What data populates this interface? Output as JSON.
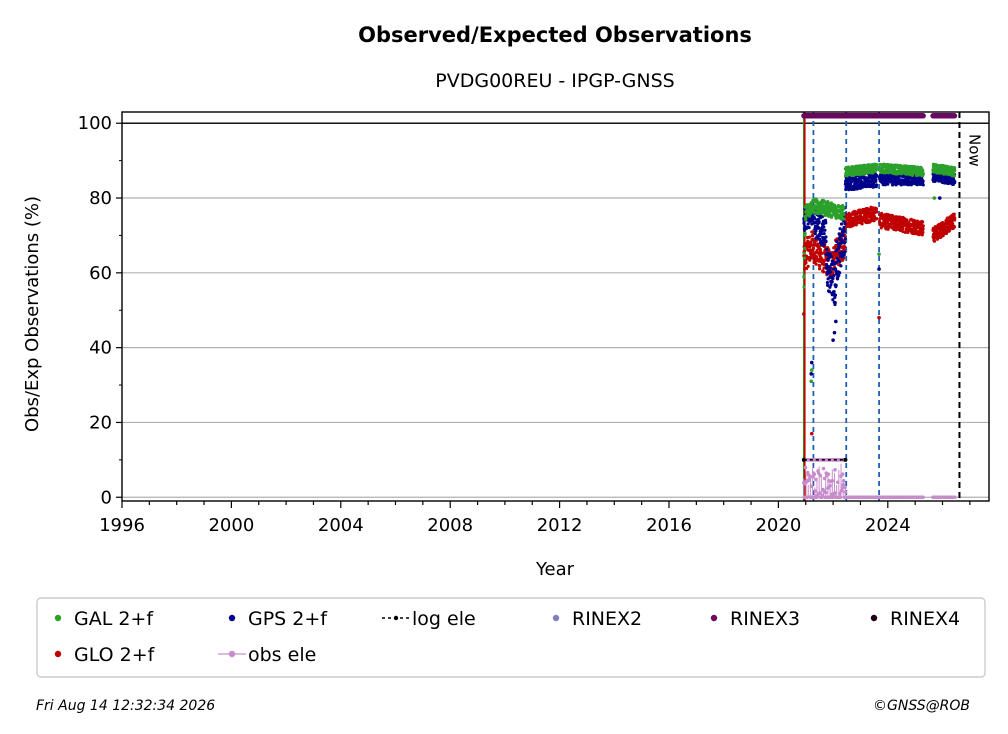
{
  "chart_data": {
    "type": "scatter",
    "title": "Observed/Expected Observations",
    "subtitle": "PVDG00REU - IPGP-GNSS",
    "xlabel": "Year",
    "ylabel": "Obs/Exp Observations (%)",
    "xlim": [
      1996,
      2027.7
    ],
    "ylim": [
      -1,
      103
    ],
    "x_ticks": [
      1996,
      2000,
      2004,
      2008,
      2012,
      2016,
      2020,
      2024
    ],
    "y_ticks": [
      0,
      20,
      40,
      60,
      80,
      100
    ],
    "grid": true,
    "legend_position": "bottom",
    "reference_line": 100,
    "now_label": "Now",
    "now_x": 2026.62,
    "equipment_changes": [
      {
        "x": 2020.93,
        "color": "#2ca02c"
      },
      {
        "x": 2020.96,
        "color": "#c00000"
      },
      {
        "x": 2021.28,
        "color": "#1f5fb4"
      },
      {
        "x": 2022.48,
        "color": "#1f5fb4"
      },
      {
        "x": 2023.68,
        "color": "#1f5fb4"
      }
    ],
    "series": [
      {
        "name": "GAL 2+f",
        "color": "#2ca02c",
        "marker": "dot",
        "segments": [
          {
            "x0": 2020.93,
            "x1": 2020.98,
            "y0": 57,
            "y1": 70,
            "spread": 4
          },
          {
            "x0": 2020.98,
            "x1": 2021.3,
            "y0": 76,
            "y1": 78,
            "spread": 2
          },
          {
            "x0": 2021.3,
            "x1": 2022.4,
            "y0": 78,
            "y1": 76,
            "spread": 2
          },
          {
            "x0": 2022.45,
            "x1": 2023.6,
            "y0": 87,
            "y1": 88,
            "spread": 1.2
          },
          {
            "x0": 2023.7,
            "x1": 2025.3,
            "y0": 88,
            "y1": 87,
            "spread": 1.2
          },
          {
            "x0": 2025.65,
            "x1": 2026.45,
            "y0": 88,
            "y1": 87,
            "spread": 1.2
          }
        ],
        "outliers": [
          [
            2021.2,
            31
          ],
          [
            2021.22,
            34
          ],
          [
            2023.68,
            65
          ],
          [
            2025.7,
            80
          ]
        ]
      },
      {
        "name": "GPS 2+f",
        "color": "#00008b",
        "marker": "dot",
        "segments": [
          {
            "x0": 2020.93,
            "x1": 2021.3,
            "y0": 74,
            "y1": 76,
            "spread": 3
          },
          {
            "x0": 2021.3,
            "x1": 2021.75,
            "y0": 74,
            "y1": 70,
            "spread": 4
          },
          {
            "x0": 2021.75,
            "x1": 2022.1,
            "y0": 62,
            "y1": 56,
            "spread": 6
          },
          {
            "x0": 2022.1,
            "x1": 2022.45,
            "y0": 62,
            "y1": 72,
            "spread": 6
          },
          {
            "x0": 2022.45,
            "x1": 2023.6,
            "y0": 84,
            "y1": 85,
            "spread": 2
          },
          {
            "x0": 2023.7,
            "x1": 2025.3,
            "y0": 85,
            "y1": 85,
            "spread": 1.5
          },
          {
            "x0": 2025.65,
            "x1": 2026.45,
            "y0": 86,
            "y1": 85,
            "spread": 1.5
          }
        ],
        "outliers": [
          [
            2021.2,
            33
          ],
          [
            2021.22,
            36
          ],
          [
            2022.0,
            42
          ],
          [
            2022.05,
            44
          ],
          [
            2022.1,
            47
          ],
          [
            2023.68,
            61
          ],
          [
            2025.9,
            80
          ]
        ]
      },
      {
        "name": "GLO 2+f",
        "color": "#c00000",
        "marker": "dot",
        "segments": [
          {
            "x0": 2020.93,
            "x1": 2021.3,
            "y0": 64,
            "y1": 68,
            "spread": 4
          },
          {
            "x0": 2021.3,
            "x1": 2022.0,
            "y0": 66,
            "y1": 62,
            "spread": 4
          },
          {
            "x0": 2022.0,
            "x1": 2022.45,
            "y0": 64,
            "y1": 68,
            "spread": 4
          },
          {
            "x0": 2022.45,
            "x1": 2023.6,
            "y0": 74,
            "y1": 76,
            "spread": 2
          },
          {
            "x0": 2023.7,
            "x1": 2025.3,
            "y0": 74,
            "y1": 72,
            "spread": 2
          },
          {
            "x0": 2025.65,
            "x1": 2026.45,
            "y0": 70,
            "y1": 74,
            "spread": 2
          }
        ],
        "outliers": [
          [
            2020.93,
            49
          ],
          [
            2021.22,
            17
          ],
          [
            2023.68,
            48
          ],
          [
            2022.4,
            66
          ]
        ]
      },
      {
        "name": "obs ele",
        "color": "#c88ccc",
        "marker": "line-dot",
        "segments": [
          {
            "x0": 2020.93,
            "x1": 2022.45,
            "y0": 10,
            "y1": 10,
            "spread": 0
          },
          {
            "x0": 2020.93,
            "x1": 2022.45,
            "y0": 2,
            "y1": 2,
            "spread": 2
          },
          {
            "x0": 2022.45,
            "x1": 2025.3,
            "y0": 0,
            "y1": 0,
            "spread": 0
          },
          {
            "x0": 2025.65,
            "x1": 2026.45,
            "y0": 0,
            "y1": 0,
            "spread": 0
          }
        ],
        "outliers": []
      },
      {
        "name": "log ele",
        "color": "#000000",
        "marker": "dashed-dot",
        "x": [
          2020.93,
          2022.45
        ],
        "y": [
          10,
          10
        ]
      },
      {
        "name": "RINEX2",
        "color": "#8080c0",
        "marker": "dot",
        "x": [],
        "y": []
      },
      {
        "name": "RINEX3",
        "color": "#6a0a60",
        "marker": "dot",
        "ranges": [
          [
            2020.93,
            2025.3,
            102
          ],
          [
            2025.65,
            2026.45,
            102
          ]
        ]
      },
      {
        "name": "RINEX4",
        "color": "#200018",
        "marker": "dot",
        "x": [],
        "y": []
      }
    ],
    "legend": [
      {
        "label": "GAL 2+f",
        "color": "#2ca02c",
        "style": "dot"
      },
      {
        "label": "GPS 2+f",
        "color": "#00008b",
        "style": "dot"
      },
      {
        "label": "log ele",
        "color": "#000000",
        "style": "dashed-dot"
      },
      {
        "label": "RINEX2",
        "color": "#8080c0",
        "style": "dot"
      },
      {
        "label": "RINEX3",
        "color": "#6a0a60",
        "style": "dot"
      },
      {
        "label": "RINEX4",
        "color": "#200018",
        "style": "dot"
      },
      {
        "label": "GLO 2+f",
        "color": "#c00000",
        "style": "dot"
      },
      {
        "label": "obs ele",
        "color": "#c88ccc",
        "style": "line-dot"
      }
    ]
  },
  "footer": {
    "timestamp": "Fri Aug 14 12:32:34 2026",
    "credit": "©GNSS@ROB"
  }
}
